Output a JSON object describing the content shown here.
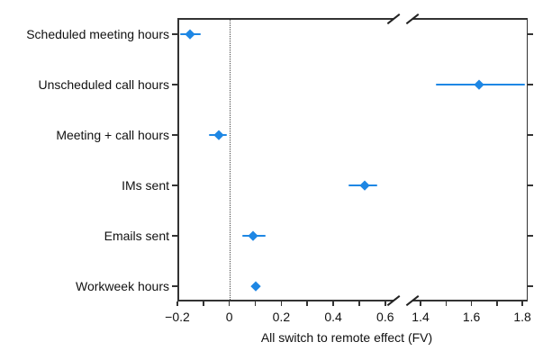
{
  "figure": {
    "background": "#ffffff"
  },
  "chart_data": {
    "type": "scatter",
    "subtype": "horizontal dot plot with error bars (forest plot) and broken x-axis",
    "title": "",
    "xlabel": "All switch to remote effect (FV)",
    "ylabel": "",
    "grid": false,
    "legend": false,
    "marker": "diamond",
    "colors": {
      "marker": "#1e87e4",
      "axis": "#333333",
      "text": "#111111"
    },
    "zero_reference_line": {
      "x": 0,
      "style": "dotted"
    },
    "x_axis_break": {
      "between": [
        0.6,
        1.4
      ]
    },
    "categories": [
      "Scheduled meeting hours",
      "Unscheduled call hours",
      "Meeting + call hours",
      "IMs sent",
      "Emails sent",
      "Workweek hours"
    ],
    "points": [
      {
        "category": "Scheduled meeting hours",
        "value": -0.15,
        "ci_low": -0.19,
        "ci_high": -0.11,
        "panel": 0
      },
      {
        "category": "Unscheduled call hours",
        "value": 1.63,
        "ci_low": 1.46,
        "ci_high": 1.81,
        "panel": 1
      },
      {
        "category": "Meeting + call hours",
        "value": -0.04,
        "ci_low": -0.08,
        "ci_high": -0.01,
        "panel": 0
      },
      {
        "category": "IMs sent",
        "value": 0.52,
        "ci_low": 0.46,
        "ci_high": 0.57,
        "panel": 0
      },
      {
        "category": "Emails sent",
        "value": 0.09,
        "ci_low": 0.05,
        "ci_high": 0.14,
        "panel": 0
      },
      {
        "category": "Workweek hours",
        "value": 0.1,
        "ci_low": 0.09,
        "ci_high": 0.11,
        "panel": 0
      }
    ],
    "panels": [
      {
        "side": "left",
        "xlim": [
          -0.2,
          0.632
        ],
        "ticks": [
          {
            "v": -0.2,
            "label": "−0.2"
          },
          {
            "v": -0.1,
            "label": ""
          },
          {
            "v": 0,
            "label": "0"
          },
          {
            "v": 0.1,
            "label": ""
          },
          {
            "v": 0.2,
            "label": "0.2"
          },
          {
            "v": 0.3,
            "label": ""
          },
          {
            "v": 0.4,
            "label": "0.4"
          },
          {
            "v": 0.5,
            "label": ""
          },
          {
            "v": 0.6,
            "label": "0.6"
          }
        ]
      },
      {
        "side": "right",
        "xlim": [
          1.368,
          1.821
        ],
        "ticks": [
          {
            "v": 1.4,
            "label": "1.4"
          },
          {
            "v": 1.5,
            "label": ""
          },
          {
            "v": 1.6,
            "label": "1.6"
          },
          {
            "v": 1.7,
            "label": ""
          },
          {
            "v": 1.8,
            "label": "1.8"
          }
        ]
      }
    ]
  }
}
